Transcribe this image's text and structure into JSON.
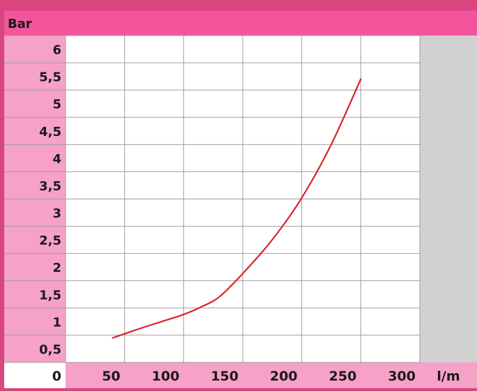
{
  "chart_data": {
    "type": "line",
    "ylabel": "Bar",
    "xlabel": "l/m",
    "origin_label": "0",
    "xlim": [
      0,
      300
    ],
    "ylim": [
      0,
      6
    ],
    "x_ticks": [
      "50",
      "100",
      "150",
      "200",
      "250",
      "300"
    ],
    "y_ticks": [
      "0,5",
      "1",
      "1,5",
      "2",
      "2,5",
      "3",
      "3,5",
      "4",
      "4,5",
      "5",
      "5,5",
      "6"
    ],
    "series": [
      {
        "x": [
          40,
          60,
          80,
          100,
          115,
          130,
          150,
          175,
          200,
          225,
          250
        ],
        "y": [
          0.45,
          0.6,
          0.74,
          0.88,
          1.02,
          1.2,
          1.63,
          2.25,
          3.02,
          4.0,
          5.2
        ]
      }
    ],
    "colors": {
      "background": "#d8457f",
      "header_band": "#f2559c",
      "axis_cells": "#f6a1c7",
      "plot_area": "#ffffff",
      "right_panel": "#d1d1d1",
      "grid": "#9e9e9e",
      "line": "#d8232a"
    }
  }
}
